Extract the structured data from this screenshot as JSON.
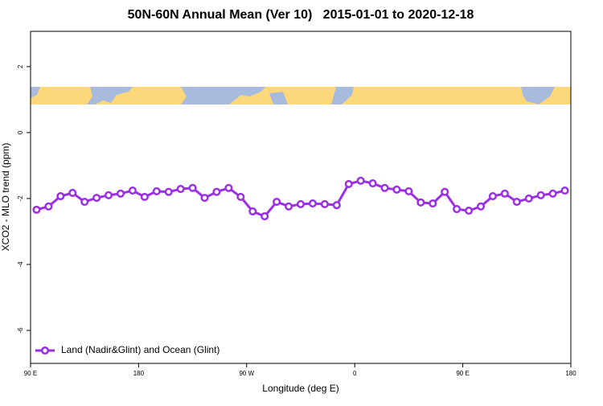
{
  "chart_data": {
    "type": "line",
    "title": "50N-60N Annual Mean (Ver 10)   2015-01-01 to 2020-12-18",
    "x_label": "Longitude (deg E)",
    "y_label": "XCO2 - MLO trend (ppm)",
    "x": [
      95,
      105,
      115,
      125,
      135,
      145,
      155,
      165,
      175,
      185,
      195,
      205,
      215,
      225,
      235,
      245,
      255,
      265,
      275,
      285,
      295,
      305,
      315,
      325,
      335,
      345,
      355,
      365,
      375,
      385,
      395,
      405,
      415,
      425,
      435,
      445,
      455,
      465,
      475,
      485,
      495,
      505,
      515,
      525,
      535
    ],
    "series": [
      {
        "name": "Land (Nadir&Glint) and Ocean (Glint)",
        "color": "#9b2fe3",
        "values": [
          -2.34,
          -2.24,
          -1.93,
          -1.83,
          -2.1,
          -1.98,
          -1.9,
          -1.85,
          -1.76,
          -1.95,
          -1.78,
          -1.8,
          -1.71,
          -1.68,
          -1.98,
          -1.8,
          -1.68,
          -1.95,
          -2.39,
          -2.54,
          -2.1,
          -2.24,
          -2.17,
          -2.15,
          -2.17,
          -2.2,
          -1.56,
          -1.46,
          -1.54,
          -1.68,
          -1.73,
          -1.78,
          -2.12,
          -2.15,
          -1.8,
          -2.32,
          -2.37,
          -2.24,
          -1.93,
          -1.85,
          -2.1,
          -2.0,
          -1.9,
          -1.85,
          -1.76
        ]
      }
    ],
    "xlim": [
      90,
      540
    ],
    "xticks": [
      {
        "value": 90,
        "label": "90 E"
      },
      180,
      {
        "value": 270,
        "label": "90 W"
      },
      {
        "value": 360,
        "label": "0"
      },
      {
        "value": 450,
        "label": "90 E"
      },
      {
        "value": 540,
        "label": "180"
      }
    ],
    "ylim": [
      -7,
      3.07
    ],
    "yticks": [
      -6,
      -4,
      -2,
      0,
      2
    ],
    "legend": "bottom-left"
  }
}
